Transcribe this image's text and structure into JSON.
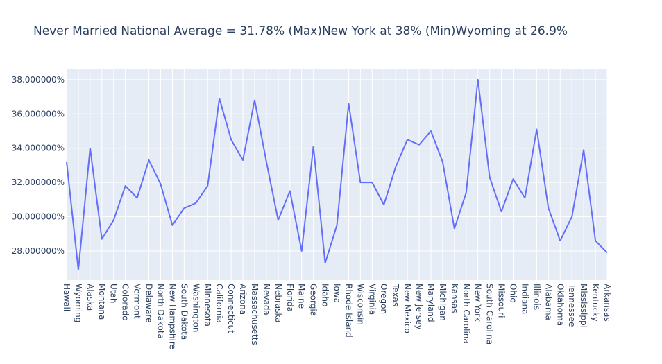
{
  "chart_data": {
    "type": "line",
    "title": "Never Married National Average = 31.78%  (Max)New York at 38%  (Min)Wyoming at 26.9%",
    "xlabel": "",
    "ylabel": "",
    "ylim": [
      26.3,
      38.6
    ],
    "yticks": [
      28,
      30,
      32,
      34,
      36,
      38
    ],
    "ytick_labels": [
      "28.000000%",
      "30.000000%",
      "32.000000%",
      "34.000000%",
      "36.000000%",
      "38.000000%"
    ],
    "grid": true,
    "line_color": "#636efa",
    "plot_bg": "#e5ecf6",
    "categories": [
      "Hawaii",
      "Wyoming",
      "Alaska",
      "Montana",
      "Utah",
      "Colorado",
      "Vermont",
      "Delaware",
      "North Dakota",
      "New Hampshire",
      "South Dakota",
      "Washington",
      "Minnesota",
      "California",
      "Connecticut",
      "Arizona",
      "Massachusetts",
      "Nevada",
      "Nebraska",
      "Florida",
      "Maine",
      "Georgia",
      "Idaho",
      "Iowa",
      "Rhode Island",
      "Wisconsin",
      "Virginia",
      "Oregon",
      "Texas",
      "New Mexico",
      "New Jersey",
      "Maryland",
      "Michigan",
      "Kansas",
      "North Carolina",
      "New York",
      "South Carolina",
      "Missouri",
      "Ohio",
      "Indiana",
      "Illinois",
      "Alabama",
      "Oklahoma",
      "Tennessee",
      "Mississippi",
      "Kentucky",
      "Arkansas"
    ],
    "values": [
      33.2,
      26.9,
      34.0,
      28.7,
      29.8,
      31.8,
      31.1,
      33.3,
      31.9,
      29.5,
      30.5,
      30.8,
      31.8,
      36.9,
      34.5,
      33.3,
      36.8,
      33.2,
      29.8,
      31.5,
      28.0,
      34.1,
      27.3,
      29.5,
      36.6,
      32.0,
      32.0,
      30.7,
      32.9,
      34.5,
      34.2,
      35.0,
      33.2,
      29.3,
      31.4,
      38.0,
      32.3,
      30.3,
      32.2,
      31.1,
      35.1,
      30.5,
      28.6,
      30.0,
      33.9,
      28.6,
      27.9
    ]
  }
}
